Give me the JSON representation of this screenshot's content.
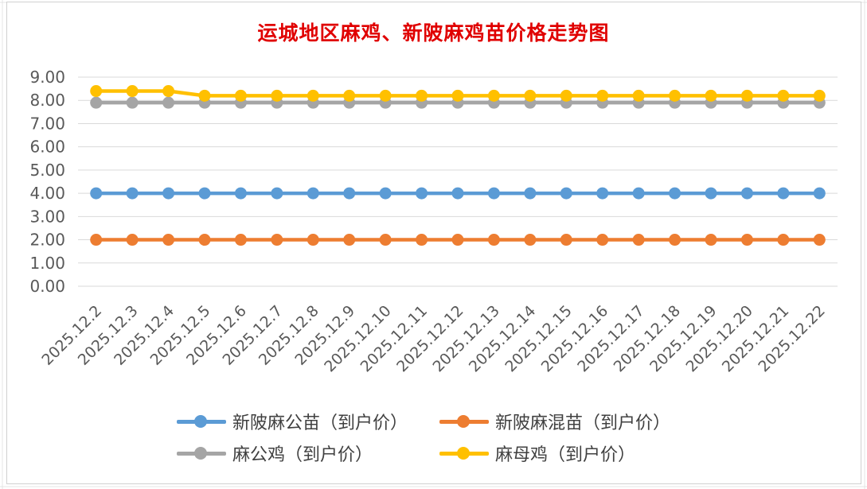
{
  "chart_data": {
    "type": "line",
    "title": "运城地区麻鸡、新陂麻鸡苗价格走势图",
    "categories": [
      "2025.12.2",
      "2025.12.3",
      "2025.12.4",
      "2025.12.5",
      "2025.12.6",
      "2025.12.7",
      "2025.12.8",
      "2025.12.9",
      "2025.12.10",
      "2025.12.11",
      "2025.12.12",
      "2025.12.13",
      "2025.12.14",
      "2025.12.15",
      "2025.12.16",
      "2025.12.17",
      "2025.12.18",
      "2025.12.19",
      "2025.12.20",
      "2025.12.21",
      "2025.12.22"
    ],
    "y_ticks": [
      "0.00",
      "1.00",
      "2.00",
      "3.00",
      "4.00",
      "5.00",
      "6.00",
      "7.00",
      "8.00",
      "9.00"
    ],
    "ylim": [
      0,
      9
    ],
    "grid": true,
    "legend_position": "bottom",
    "series": [
      {
        "name": "新陂麻公苗（到户价）",
        "color": "#5b9bd5",
        "values": [
          4,
          4,
          4,
          4,
          4,
          4,
          4,
          4,
          4,
          4,
          4,
          4,
          4,
          4,
          4,
          4,
          4,
          4,
          4,
          4,
          4
        ]
      },
      {
        "name": "新陂麻混苗（到户价）",
        "color": "#ed7d31",
        "values": [
          2,
          2,
          2,
          2,
          2,
          2,
          2,
          2,
          2,
          2,
          2,
          2,
          2,
          2,
          2,
          2,
          2,
          2,
          2,
          2,
          2
        ]
      },
      {
        "name": "麻公鸡（到户价）",
        "color": "#a5a5a5",
        "values": [
          7.9,
          7.9,
          7.9,
          7.9,
          7.9,
          7.9,
          7.9,
          7.9,
          7.9,
          7.9,
          7.9,
          7.9,
          7.9,
          7.9,
          7.9,
          7.9,
          7.9,
          7.9,
          7.9,
          7.9,
          7.9
        ]
      },
      {
        "name": "麻母鸡（到户价）",
        "color": "#ffc000",
        "values": [
          8.4,
          8.4,
          8.4,
          8.2,
          8.2,
          8.2,
          8.2,
          8.2,
          8.2,
          8.2,
          8.2,
          8.2,
          8.2,
          8.2,
          8.2,
          8.2,
          8.2,
          8.2,
          8.2,
          8.2,
          8.2
        ]
      }
    ]
  }
}
